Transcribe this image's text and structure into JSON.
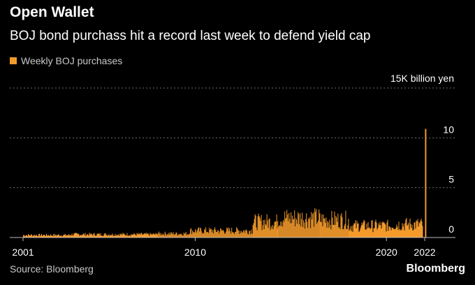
{
  "colors": {
    "background": "#000000",
    "series": "#f39a2b",
    "grid": "#6e6e6e",
    "text_primary": "#ffffff",
    "text_secondary": "#c9c9c9"
  },
  "chart_data": {
    "type": "bar",
    "title": "Open Wallet",
    "subtitle": "BOJ bond purchass hit a record last week to defend yield cap",
    "legend": [
      {
        "name": "Weekly BOJ purchases",
        "color": "#f39a2b"
      }
    ],
    "legend_position": "top-left",
    "ylabel": "15K billion yen",
    "xlabel": "",
    "ylim": [
      0,
      15
    ],
    "xlim": [
      2001,
      2022.6
    ],
    "y_ticks": [
      {
        "value": 15,
        "label": "15K billion yen"
      },
      {
        "value": 10,
        "label": "10"
      },
      {
        "value": 5,
        "label": "5"
      },
      {
        "value": 0,
        "label": "0"
      }
    ],
    "x_ticks": [
      {
        "value": 2001,
        "label": "2001"
      },
      {
        "value": 2010,
        "label": "2010"
      },
      {
        "value": 2020,
        "label": "2020"
      },
      {
        "value": 2022,
        "label": "2022"
      }
    ],
    "grid": true,
    "series": [
      {
        "name": "Weekly BOJ purchases",
        "segments": [
          {
            "start": 2001.0,
            "end": 2003.5,
            "level": 0.25
          },
          {
            "start": 2003.5,
            "end": 2008.0,
            "level": 0.32
          },
          {
            "start": 2008.0,
            "end": 2009.7,
            "level": 0.4
          },
          {
            "start": 2009.7,
            "end": 2013.0,
            "level": 0.7
          },
          {
            "start": 2013.0,
            "end": 2014.3,
            "level": 1.6
          },
          {
            "start": 2014.3,
            "end": 2016.5,
            "level": 2.0
          },
          {
            "start": 2016.5,
            "end": 2018.0,
            "level": 1.8
          },
          {
            "start": 2018.0,
            "end": 2020.3,
            "level": 1.2
          },
          {
            "start": 2020.3,
            "end": 2021.9,
            "level": 1.35
          }
        ],
        "spike": {
          "x": 2022.05,
          "value": 10.9
        }
      }
    ]
  },
  "footer": {
    "source": "Source: Bloomberg",
    "brand": "Bloomberg"
  }
}
